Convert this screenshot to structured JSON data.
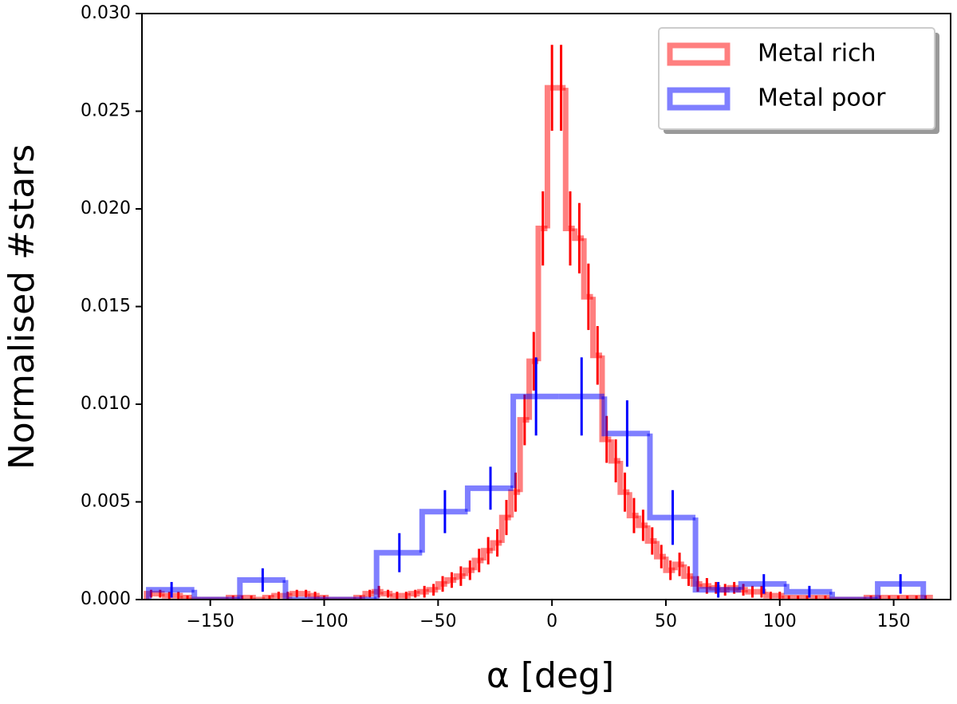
{
  "chart_data": {
    "type": "histogram",
    "xlabel": "α [deg]",
    "ylabel": "Normalised #stars",
    "xlim": [
      -180,
      175
    ],
    "ylim": [
      0,
      0.03
    ],
    "xticks": [
      {
        "value": -150,
        "label": "−150"
      },
      {
        "value": -100,
        "label": "−100"
      },
      {
        "value": -50,
        "label": "−50"
      },
      0,
      50,
      100,
      150
    ],
    "yticks": [
      {
        "value": 0,
        "label": "0.000"
      },
      {
        "value": 0.005,
        "label": "0.005"
      },
      {
        "value": 0.01,
        "label": "0.010"
      },
      {
        "value": 0.015,
        "label": "0.015"
      },
      {
        "value": 0.02,
        "label": "0.020"
      },
      {
        "value": 0.025,
        "label": "0.025"
      },
      {
        "value": 0.03,
        "label": "0.030"
      }
    ],
    "legend": "upper right",
    "series": [
      {
        "name": "Metal rich",
        "color": "#ff0000",
        "error_color": "#ff0000",
        "bins": [
          -178,
          -174,
          -170,
          -166,
          -162,
          -158,
          -154,
          -150,
          -146,
          -142,
          -138,
          -134,
          -130,
          -126,
          -122,
          -118,
          -114,
          -110,
          -106,
          -102,
          -98,
          -94,
          -90,
          -86,
          -82,
          -78,
          -74,
          -70,
          -66,
          -62,
          -58,
          -54,
          -50,
          -46,
          -42,
          -38,
          -34,
          -30,
          -26,
          -22,
          -18,
          -14,
          -10,
          -6,
          -2,
          2,
          6,
          10,
          14,
          18,
          22,
          26,
          30,
          34,
          38,
          42,
          46,
          50,
          54,
          58,
          62,
          66,
          70,
          74,
          78,
          82,
          86,
          90,
          94,
          98,
          102,
          106,
          110,
          114,
          118,
          122,
          126,
          130,
          134,
          138,
          142,
          146,
          150,
          154,
          158,
          162,
          166
        ],
        "values": [
          0.0003,
          0.0003,
          0.0002,
          0.0002,
          0.0001,
          0,
          0,
          0,
          0,
          0.0001,
          0.0001,
          0.0001,
          0,
          0.0001,
          0.0002,
          0.0002,
          0.0003,
          0.0003,
          0.0002,
          0.0001,
          0,
          0,
          0,
          0.0001,
          0.0003,
          0.0004,
          0.0003,
          0.0002,
          0.0002,
          0.0003,
          0.0004,
          0.0005,
          0.0008,
          0.001,
          0.0012,
          0.0015,
          0.002,
          0.0025,
          0.0029,
          0.0042,
          0.0055,
          0.0092,
          0.0122,
          0.019,
          0.0262,
          0.0262,
          0.019,
          0.0185,
          0.0155,
          0.0125,
          0.0082,
          0.0071,
          0.0055,
          0.0043,
          0.0038,
          0.003,
          0.0022,
          0.0015,
          0.0018,
          0.0012,
          0.0008,
          0.0007,
          0.0006,
          0.0005,
          0.0006,
          0.0005,
          0.0004,
          0.0004,
          0.0002,
          0.0002,
          0.0001,
          0.0001,
          0.0001,
          0.0001,
          0.0001,
          0,
          0,
          0,
          0,
          0.0001,
          0.0001,
          0.0001,
          0.0001,
          0.0001,
          0.0001,
          0.0001
        ],
        "errors": [
          0.0002,
          0.0002,
          0.0002,
          0.0002,
          0.0001,
          0,
          0,
          0,
          0,
          0.0001,
          0.0001,
          0.0001,
          0,
          0.0001,
          0.0002,
          0.0002,
          0.0002,
          0.0002,
          0.0002,
          0.0001,
          0,
          0,
          0,
          0.0001,
          0.0002,
          0.0003,
          0.0002,
          0.0002,
          0.0002,
          0.0002,
          0.0003,
          0.0003,
          0.0004,
          0.0004,
          0.0005,
          0.0005,
          0.0006,
          0.0007,
          0.0007,
          0.0009,
          0.001,
          0.0013,
          0.0015,
          0.0019,
          0.0022,
          0.0022,
          0.0019,
          0.0018,
          0.0017,
          0.0015,
          0.0012,
          0.0011,
          0.001,
          0.0009,
          0.0008,
          0.0007,
          0.0006,
          0.0005,
          0.0006,
          0.0005,
          0.0004,
          0.0004,
          0.0003,
          0.0003,
          0.0003,
          0.0003,
          0.0003,
          0.0003,
          0.0002,
          0.0002,
          0.0001,
          0.0001,
          0.0001,
          0.0001,
          0.0001,
          0,
          0,
          0,
          0,
          0.0001,
          0.0001,
          0.0001,
          0.0001,
          0.0001,
          0.0001,
          0.0001
        ]
      },
      {
        "name": "Metal poor",
        "color": "#0000ff",
        "error_color": "#0000ff",
        "bins": [
          -177,
          -157,
          -137,
          -117,
          -97,
          -77,
          -57,
          -37,
          -17,
          3,
          23,
          43,
          63,
          83,
          103,
          123,
          143,
          163
        ],
        "values": [
          0.0005,
          0,
          0.001,
          0,
          0,
          0.0024,
          0.0045,
          0.0057,
          0.0104,
          0.0104,
          0.0085,
          0.0042,
          0.0005,
          0.0008,
          0.0004,
          0,
          0.0008
        ],
        "errors": [
          0.0004,
          0,
          0.0006,
          0,
          0,
          0.001,
          0.0011,
          0.0011,
          0.002,
          0.002,
          0.0017,
          0.0014,
          0.0004,
          0.0005,
          0.0003,
          0,
          0.0005
        ]
      }
    ]
  }
}
